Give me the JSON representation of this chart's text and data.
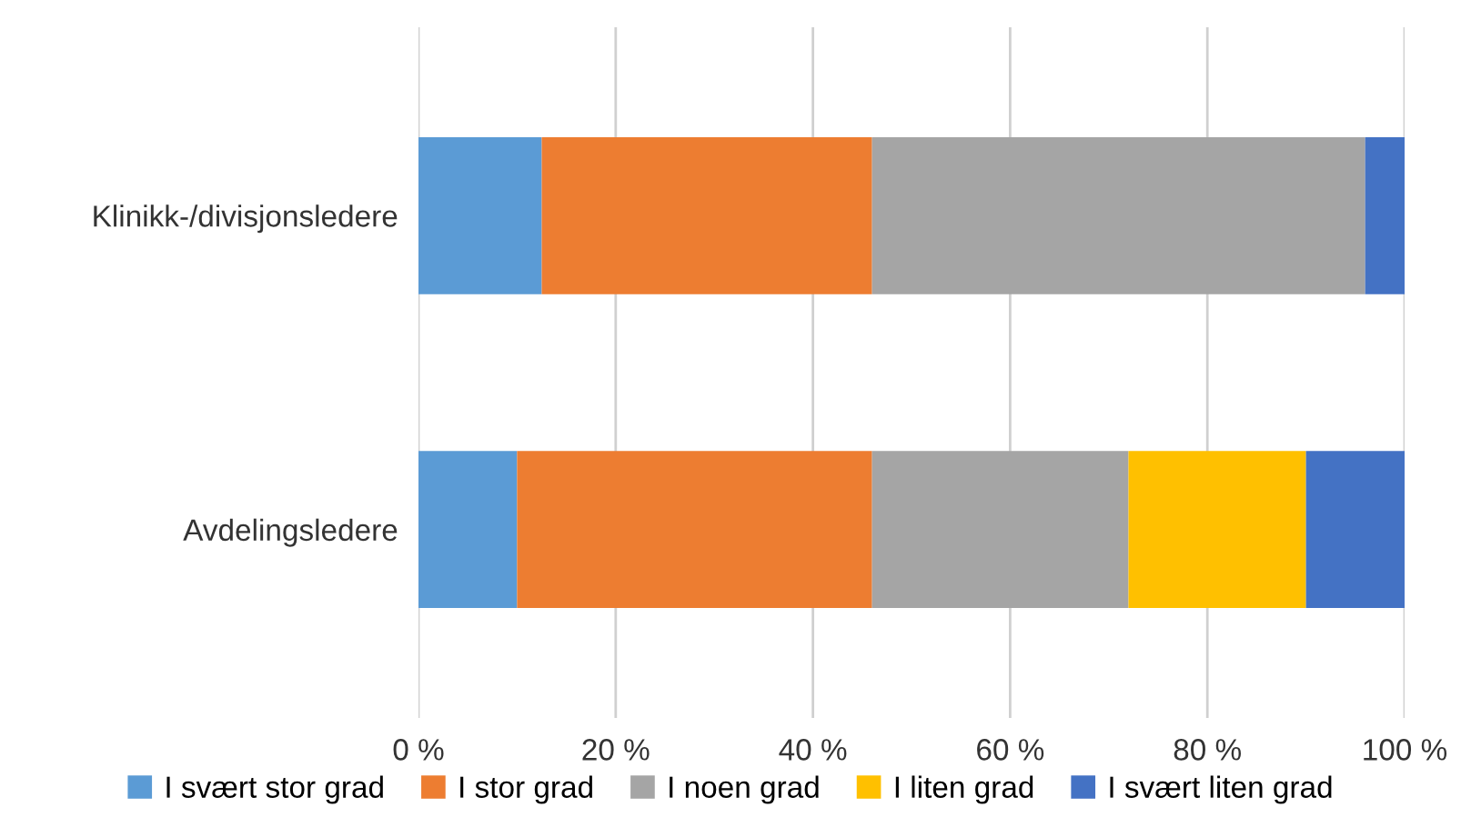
{
  "chart_data": {
    "type": "bar",
    "orientation": "horizontal",
    "stacked": true,
    "categories": [
      "Klinikk-/divisjonsledere",
      "Avdelingsledere"
    ],
    "series": [
      {
        "name": "I svært stor grad",
        "color": "#5b9bd5",
        "values": [
          12.5,
          10
        ]
      },
      {
        "name": "I stor grad",
        "color": "#ed7d31",
        "values": [
          33.5,
          36
        ]
      },
      {
        "name": "I noen grad",
        "color": "#a5a5a5",
        "values": [
          50,
          26
        ]
      },
      {
        "name": "I liten grad",
        "color": "#ffc000",
        "values": [
          0,
          18
        ]
      },
      {
        "name": "I svært liten grad",
        "color": "#4472c4",
        "values": [
          4,
          10
        ]
      }
    ],
    "xlim": [
      0,
      100
    ],
    "xticks": [
      {
        "value": 0,
        "label": "0 %"
      },
      {
        "value": 20,
        "label": "20 %"
      },
      {
        "value": 40,
        "label": "40 %"
      },
      {
        "value": 60,
        "label": "60 %"
      },
      {
        "value": 80,
        "label": "80 %"
      },
      {
        "value": 100,
        "label": "100 %"
      }
    ],
    "grid": "x",
    "legend": "bottom"
  }
}
